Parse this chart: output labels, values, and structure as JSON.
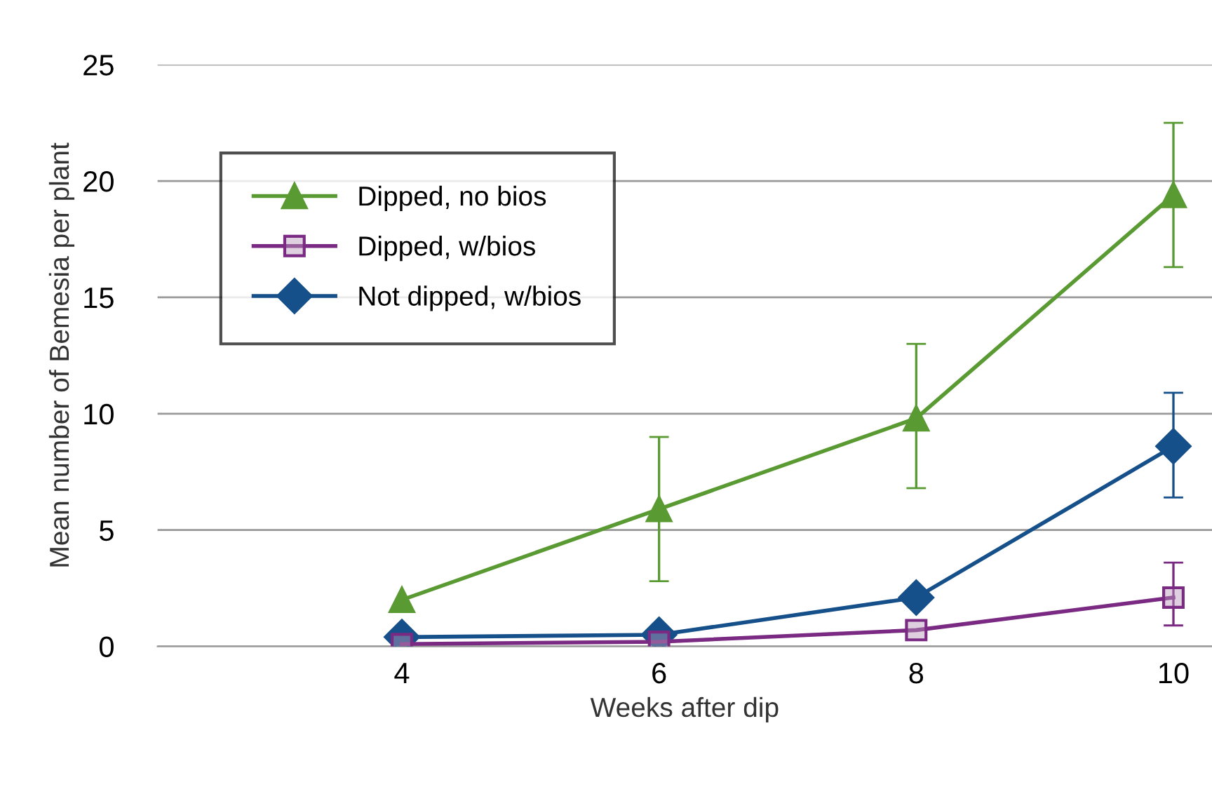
{
  "chart_data": {
    "type": "line",
    "xlabel": "Weeks after dip",
    "ylabel": "Mean number of Bemesia per plant",
    "categories": [
      "4",
      "6",
      "8",
      "10"
    ],
    "series": [
      {
        "name": "Dipped, no bios",
        "color": "#5a9a32",
        "marker": "triangle",
        "values": [
          2.0,
          5.9,
          9.8,
          19.4
        ],
        "errors": [
          null,
          [
            2.8,
            9.0
          ],
          [
            6.8,
            13.0
          ],
          [
            16.3,
            22.5
          ]
        ]
      },
      {
        "name": "Dipped, w/bios",
        "color": "#7a2a82",
        "marker": "square",
        "values": [
          0.1,
          0.2,
          0.7,
          2.1
        ],
        "errors": [
          null,
          null,
          null,
          [
            0.9,
            3.6
          ]
        ]
      },
      {
        "name": "Not dipped, w/bios",
        "color": "#16508a",
        "marker": "diamond",
        "values": [
          0.4,
          0.5,
          2.1,
          8.6
        ],
        "errors": [
          null,
          null,
          null,
          [
            6.4,
            10.9
          ]
        ]
      }
    ],
    "ylim": [
      0,
      25
    ],
    "yticks": [
      0,
      5,
      10,
      15,
      20,
      25
    ],
    "grid": "y",
    "legend": "top left",
    "line_style": "solid"
  }
}
